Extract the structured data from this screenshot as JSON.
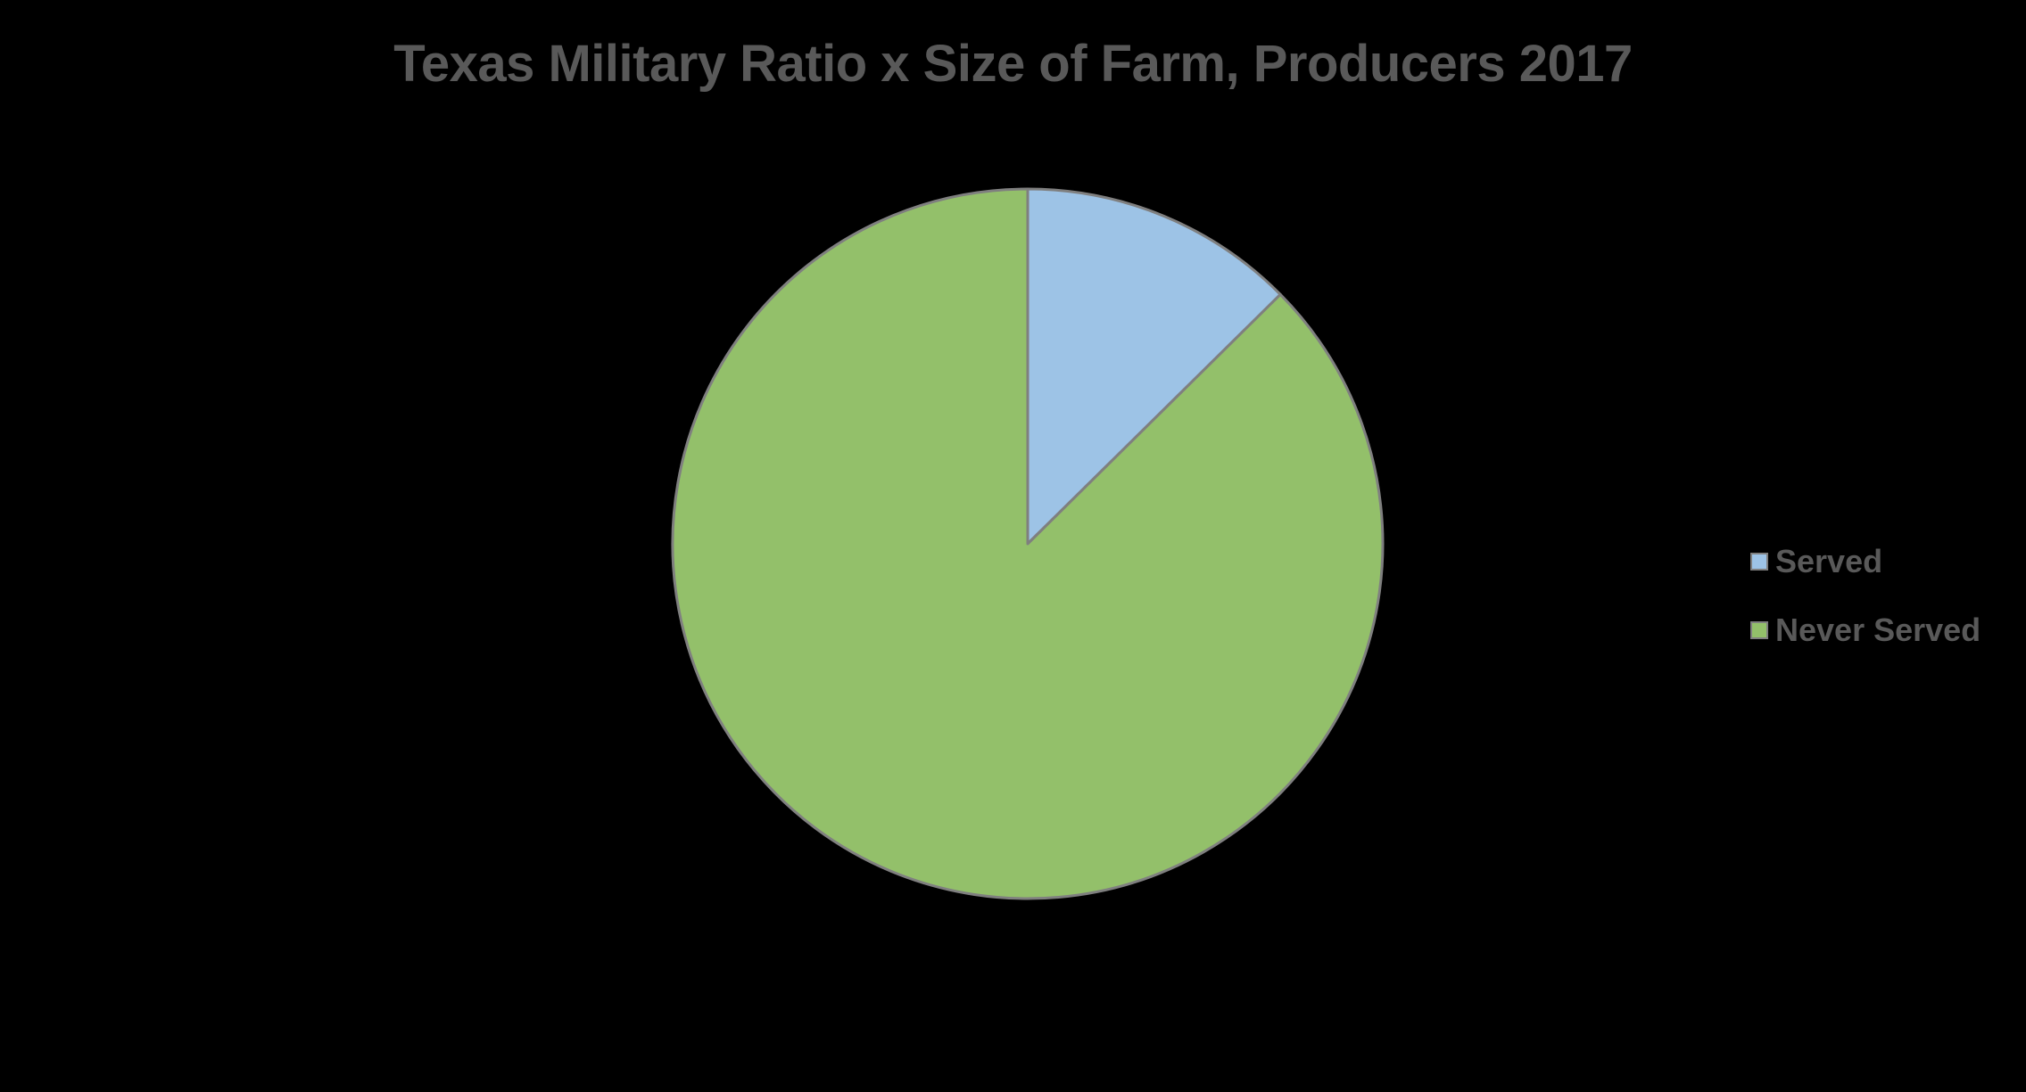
{
  "chart_data": {
    "type": "pie",
    "title": "Texas Military Ratio x Size of Farm, Producers 2017",
    "categories": [
      "Served",
      "Never Served"
    ],
    "values": [
      12.6,
      87.4
    ],
    "unit": "percent",
    "colors": [
      "#9dc3e6",
      "#93c06a"
    ],
    "slice_border_color": "#7f7f7f",
    "start_angle": "12 o'clock, clockwise",
    "legend": {
      "position": "right",
      "items": [
        {
          "label": "Served",
          "color": "#9dc3e6"
        },
        {
          "label": "Never Served",
          "color": "#93c06a"
        }
      ]
    },
    "background": "#000000"
  }
}
